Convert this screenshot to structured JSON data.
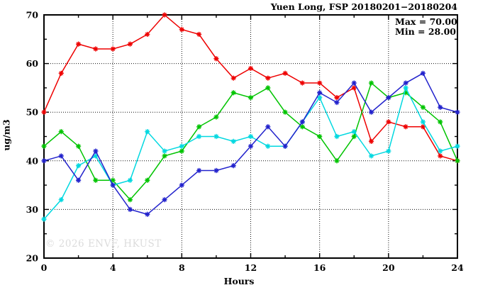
{
  "title": "Yuen Long, FSP 20180201−20180204",
  "annotation": {
    "max_label": "Max = 70.00",
    "min_label": "Min = 28.00"
  },
  "watermark": "© 2026 ENVF, HKUST",
  "colors": {
    "frame": "#000000",
    "grid": "#111111",
    "series_red": "#ee0000",
    "series_green": "#00c400",
    "series_blue": "#2222cc",
    "series_cyan": "#00d8e0"
  },
  "chart_data": {
    "type": "line",
    "title": "Yuen Long, FSP 20180201−20180204",
    "xlabel": "Hours",
    "ylabel": "ug/m3",
    "xlim": [
      0,
      24
    ],
    "ylim": [
      20,
      70
    ],
    "x_major_ticks": [
      0,
      4,
      8,
      12,
      16,
      20,
      24
    ],
    "x_minor_ticks": [
      2,
      6,
      10,
      14,
      18,
      22
    ],
    "y_major_ticks": [
      20,
      30,
      40,
      50,
      60,
      70
    ],
    "y_minor_ticks": [
      25,
      35,
      45,
      55,
      65
    ],
    "x_gridlines": [
      4,
      8,
      12,
      16,
      20
    ],
    "y_gridlines": [
      30,
      40,
      50,
      60
    ],
    "grid": true,
    "legend_position": "none",
    "marker": "asterisk",
    "x": [
      0,
      1,
      2,
      3,
      4,
      5,
      6,
      7,
      8,
      9,
      10,
      11,
      12,
      13,
      14,
      15,
      16,
      17,
      18,
      19,
      20,
      21,
      22,
      23,
      24
    ],
    "series": [
      {
        "name": "day-1-red",
        "color": "#ee0000",
        "values": [
          50,
          58,
          64,
          63,
          63,
          64,
          66,
          70,
          67,
          66,
          61,
          57,
          59,
          57,
          58,
          56,
          56,
          53,
          55,
          44,
          48,
          47,
          47,
          41,
          40
        ]
      },
      {
        "name": "day-2-green",
        "color": "#00c400",
        "values": [
          43,
          46,
          43,
          36,
          36,
          32,
          36,
          41,
          42,
          47,
          49,
          54,
          53,
          55,
          50,
          47,
          45,
          40,
          45,
          56,
          53,
          54,
          51,
          48,
          40
        ]
      },
      {
        "name": "day-4-cyan",
        "color": "#00d8e0",
        "values": [
          28,
          32,
          39,
          41,
          35,
          36,
          46,
          42,
          43,
          45,
          45,
          44,
          45,
          43,
          43,
          48,
          53,
          45,
          46,
          41,
          42,
          55,
          48,
          42,
          43
        ]
      },
      {
        "name": "day-3-blue",
        "color": "#2222cc",
        "values": [
          40,
          41,
          36,
          42,
          35,
          30,
          29,
          32,
          35,
          38,
          38,
          39,
          43,
          47,
          43,
          48,
          54,
          52,
          56,
          50,
          53,
          56,
          58,
          51,
          50
        ]
      }
    ],
    "stats": {
      "max": 70.0,
      "min": 28.0
    }
  }
}
